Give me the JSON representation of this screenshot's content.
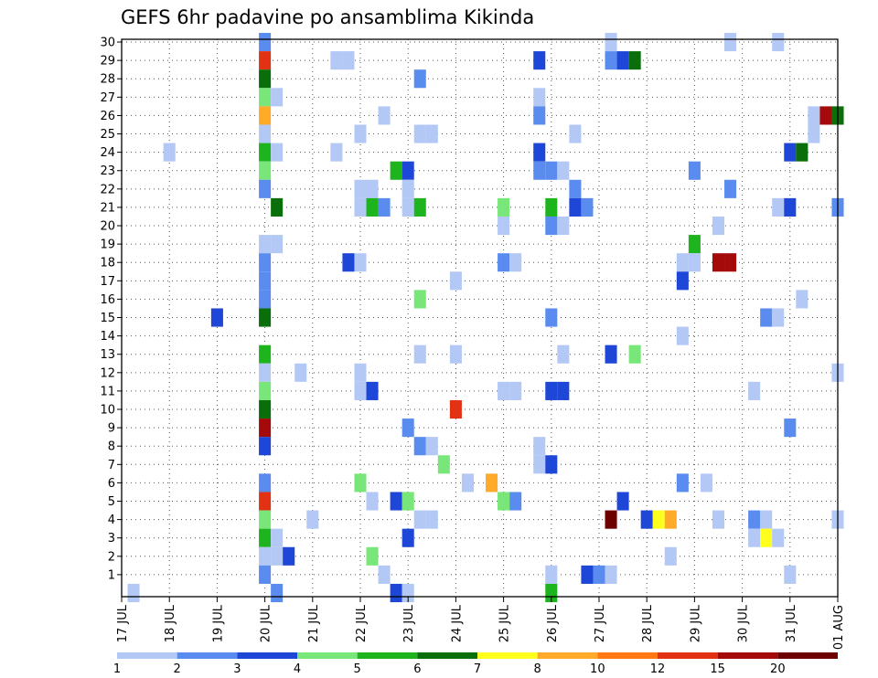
{
  "chart_data": {
    "type": "heatmap",
    "title": "GEFS 6hr padavine po ansamblima Kikinda",
    "grid": true,
    "y_members": {
      "min": 0,
      "max": 30,
      "labels": [
        "1",
        "2",
        "3",
        "4",
        "5",
        "6",
        "7",
        "8",
        "9",
        "10",
        "11",
        "12",
        "13",
        "14",
        "15",
        "16",
        "17",
        "18",
        "19",
        "20",
        "21",
        "22",
        "23",
        "24",
        "25",
        "26",
        "27",
        "28",
        "29",
        "30"
      ]
    },
    "x_time": {
      "labels": [
        "17 JUL",
        "18 JUL",
        "19 JUL",
        "20 JUL",
        "21 JUL",
        "22 JUL",
        "23 JUL",
        "24 JUL",
        "25 JUL",
        "26 JUL",
        "27 JUL",
        "28 JUL",
        "29 JUL",
        "30 JUL",
        "31 JUL",
        "01 AUG"
      ],
      "range_days": [
        0,
        15
      ]
    },
    "colorbar": {
      "labels": [
        "1",
        "2",
        "3",
        "4",
        "5",
        "6",
        "7",
        "8",
        "10",
        "12",
        "15",
        "20"
      ],
      "colors": [
        "#b4c8f5",
        "#5a8cf0",
        "#1e46d7",
        "#78e678",
        "#1eb41e",
        "#0a6e0a",
        "#ffff1e",
        "#ffaa28",
        "#ff7814",
        "#e13214",
        "#a50a0a",
        "#6e0000"
      ]
    },
    "cells": [
      {
        "day": 3.0,
        "member": 30,
        "c": 1
      },
      {
        "day": 3.0,
        "member": 29,
        "c": 9
      },
      {
        "day": 3.0,
        "member": 28,
        "c": 5
      },
      {
        "day": 3.0,
        "member": 27,
        "c": 3
      },
      {
        "day": 3.0,
        "member": 26,
        "c": 7
      },
      {
        "day": 3.0,
        "member": 25,
        "c": 0
      },
      {
        "day": 3.0,
        "member": 24,
        "c": 4
      },
      {
        "day": 3.0,
        "member": 23,
        "c": 3
      },
      {
        "day": 3.0,
        "member": 22,
        "c": 1
      },
      {
        "day": 3.0,
        "member": 19,
        "c": 0
      },
      {
        "day": 3.0,
        "member": 18,
        "c": 1
      },
      {
        "day": 3.0,
        "member": 17,
        "c": 1
      },
      {
        "day": 3.0,
        "member": 16,
        "c": 1
      },
      {
        "day": 3.0,
        "member": 15,
        "c": 5
      },
      {
        "day": 3.0,
        "member": 13,
        "c": 4
      },
      {
        "day": 3.0,
        "member": 12,
        "c": 0
      },
      {
        "day": 3.0,
        "member": 11,
        "c": 3
      },
      {
        "day": 3.0,
        "member": 10,
        "c": 5
      },
      {
        "day": 3.0,
        "member": 9,
        "c": 10
      },
      {
        "day": 3.0,
        "member": 8,
        "c": 2
      },
      {
        "day": 3.0,
        "member": 6,
        "c": 1
      },
      {
        "day": 3.0,
        "member": 5,
        "c": 9
      },
      {
        "day": 3.0,
        "member": 4,
        "c": 3
      },
      {
        "day": 3.0,
        "member": 3,
        "c": 4
      },
      {
        "day": 3.0,
        "member": 2,
        "c": 0
      },
      {
        "day": 3.0,
        "member": 1,
        "c": 1
      },
      {
        "day": 3.25,
        "member": 27,
        "c": 0
      },
      {
        "day": 3.25,
        "member": 24,
        "c": 0
      },
      {
        "day": 3.25,
        "member": 21,
        "c": 5
      },
      {
        "day": 3.25,
        "member": 19,
        "c": 0
      },
      {
        "day": 3.25,
        "member": 3,
        "c": 0
      },
      {
        "day": 3.25,
        "member": 2,
        "c": 0
      },
      {
        "day": 3.25,
        "member": 0,
        "c": 1
      },
      {
        "day": 0.25,
        "member": 0,
        "c": 0
      },
      {
        "day": 3.5,
        "member": 2,
        "c": 2
      },
      {
        "day": 1.0,
        "member": 24,
        "c": 0
      },
      {
        "day": 2.0,
        "member": 15,
        "c": 2
      },
      {
        "day": 3.75,
        "member": 12,
        "c": 0
      },
      {
        "day": 4.0,
        "member": 4,
        "c": 0
      },
      {
        "day": 4.5,
        "member": 29,
        "c": 0
      },
      {
        "day": 4.5,
        "member": 24,
        "c": 0
      },
      {
        "day": 4.75,
        "member": 29,
        "c": 0
      },
      {
        "day": 4.75,
        "member": 18,
        "c": 2
      },
      {
        "day": 5.0,
        "member": 25,
        "c": 0
      },
      {
        "day": 5.0,
        "member": 22,
        "c": 0
      },
      {
        "day": 5.0,
        "member": 21,
        "c": 0
      },
      {
        "day": 5.0,
        "member": 18,
        "c": 0
      },
      {
        "day": 5.0,
        "member": 12,
        "c": 0
      },
      {
        "day": 5.0,
        "member": 11,
        "c": 0
      },
      {
        "day": 5.0,
        "member": 6,
        "c": 3
      },
      {
        "day": 5.25,
        "member": 22,
        "c": 0
      },
      {
        "day": 5.25,
        "member": 21,
        "c": 4
      },
      {
        "day": 5.25,
        "member": 11,
        "c": 2
      },
      {
        "day": 5.25,
        "member": 5,
        "c": 0
      },
      {
        "day": 5.25,
        "member": 2,
        "c": 3
      },
      {
        "day": 5.5,
        "member": 21,
        "c": 1
      },
      {
        "day": 5.5,
        "member": 1,
        "c": 0
      },
      {
        "day": 5.5,
        "member": 26,
        "c": 0
      },
      {
        "day": 5.75,
        "member": 23,
        "c": 4
      },
      {
        "day": 5.75,
        "member": 5,
        "c": 2
      },
      {
        "day": 5.75,
        "member": 0,
        "c": 2
      },
      {
        "day": 6.0,
        "member": 23,
        "c": 2
      },
      {
        "day": 6.0,
        "member": 22,
        "c": 0
      },
      {
        "day": 6.0,
        "member": 21,
        "c": 0
      },
      {
        "day": 6.0,
        "member": 9,
        "c": 1
      },
      {
        "day": 6.0,
        "member": 5,
        "c": 3
      },
      {
        "day": 6.0,
        "member": 3,
        "c": 2
      },
      {
        "day": 6.0,
        "member": 0,
        "c": 0
      },
      {
        "day": 6.25,
        "member": 28,
        "c": 1
      },
      {
        "day": 6.25,
        "member": 25,
        "c": 0
      },
      {
        "day": 6.25,
        "member": 21,
        "c": 4
      },
      {
        "day": 6.25,
        "member": 16,
        "c": 3
      },
      {
        "day": 6.25,
        "member": 13,
        "c": 0
      },
      {
        "day": 6.25,
        "member": 8,
        "c": 1
      },
      {
        "day": 6.25,
        "member": 4,
        "c": 0
      },
      {
        "day": 6.5,
        "member": 25,
        "c": 0
      },
      {
        "day": 6.5,
        "member": 8,
        "c": 0
      },
      {
        "day": 6.5,
        "member": 4,
        "c": 0
      },
      {
        "day": 6.75,
        "member": 7,
        "c": 3
      },
      {
        "day": 7.0,
        "member": 17,
        "c": 0
      },
      {
        "day": 7.0,
        "member": 13,
        "c": 0
      },
      {
        "day": 7.0,
        "member": 10,
        "c": 9
      },
      {
        "day": 7.25,
        "member": 6,
        "c": 0
      },
      {
        "day": 7.75,
        "member": 6,
        "c": 7
      },
      {
        "day": 8.0,
        "member": 21,
        "c": 3
      },
      {
        "day": 8.0,
        "member": 20,
        "c": 0
      },
      {
        "day": 8.0,
        "member": 18,
        "c": 1
      },
      {
        "day": 8.0,
        "member": 11,
        "c": 0
      },
      {
        "day": 8.0,
        "member": 5,
        "c": 3
      },
      {
        "day": 8.25,
        "member": 18,
        "c": 0
      },
      {
        "day": 8.25,
        "member": 11,
        "c": 0
      },
      {
        "day": 8.25,
        "member": 5,
        "c": 1
      },
      {
        "day": 8.75,
        "member": 29,
        "c": 2
      },
      {
        "day": 8.75,
        "member": 27,
        "c": 0
      },
      {
        "day": 8.75,
        "member": 26,
        "c": 1
      },
      {
        "day": 8.75,
        "member": 24,
        "c": 2
      },
      {
        "day": 8.75,
        "member": 23,
        "c": 1
      },
      {
        "day": 8.75,
        "member": 8,
        "c": 0
      },
      {
        "day": 8.75,
        "member": 7,
        "c": 0
      },
      {
        "day": 9.0,
        "member": 23,
        "c": 1
      },
      {
        "day": 9.0,
        "member": 21,
        "c": 4
      },
      {
        "day": 9.0,
        "member": 20,
        "c": 1
      },
      {
        "day": 9.0,
        "member": 15,
        "c": 1
      },
      {
        "day": 9.0,
        "member": 11,
        "c": 2
      },
      {
        "day": 9.0,
        "member": 7,
        "c": 2
      },
      {
        "day": 9.0,
        "member": 1,
        "c": 0
      },
      {
        "day": 9.0,
        "member": 0,
        "c": 4
      },
      {
        "day": 9.25,
        "member": 23,
        "c": 0
      },
      {
        "day": 9.25,
        "member": 20,
        "c": 0
      },
      {
        "day": 9.25,
        "member": 13,
        "c": 0
      },
      {
        "day": 9.25,
        "member": 11,
        "c": 2
      },
      {
        "day": 9.5,
        "member": 25,
        "c": 0
      },
      {
        "day": 9.5,
        "member": 22,
        "c": 1
      },
      {
        "day": 9.5,
        "member": 21,
        "c": 2
      },
      {
        "day": 9.75,
        "member": 21,
        "c": 1
      },
      {
        "day": 9.75,
        "member": 1,
        "c": 2
      },
      {
        "day": 10.0,
        "member": 1,
        "c": 1
      },
      {
        "day": 10.25,
        "member": 30,
        "c": 0
      },
      {
        "day": 10.25,
        "member": 29,
        "c": 1
      },
      {
        "day": 10.25,
        "member": 13,
        "c": 2
      },
      {
        "day": 10.25,
        "member": 4,
        "c": 11
      },
      {
        "day": 10.25,
        "member": 1,
        "c": 0
      },
      {
        "day": 10.5,
        "member": 29,
        "c": 2
      },
      {
        "day": 10.5,
        "member": 5,
        "c": 2
      },
      {
        "day": 10.75,
        "member": 29,
        "c": 5
      },
      {
        "day": 10.75,
        "member": 13,
        "c": 3
      },
      {
        "day": 11.0,
        "member": 4,
        "c": 2
      },
      {
        "day": 11.25,
        "member": 4,
        "c": 6
      },
      {
        "day": 11.5,
        "member": 4,
        "c": 7
      },
      {
        "day": 11.5,
        "member": 2,
        "c": 0
      },
      {
        "day": 11.75,
        "member": 18,
        "c": 0
      },
      {
        "day": 11.75,
        "member": 17,
        "c": 2
      },
      {
        "day": 11.75,
        "member": 14,
        "c": 0
      },
      {
        "day": 11.75,
        "member": 6,
        "c": 1
      },
      {
        "day": 12.0,
        "member": 23,
        "c": 1
      },
      {
        "day": 12.0,
        "member": 19,
        "c": 4
      },
      {
        "day": 12.0,
        "member": 18,
        "c": 0
      },
      {
        "day": 12.25,
        "member": 6,
        "c": 0
      },
      {
        "day": 12.5,
        "member": 20,
        "c": 0
      },
      {
        "day": 12.5,
        "member": 18,
        "c": 10
      },
      {
        "day": 12.5,
        "member": 4,
        "c": 0
      },
      {
        "day": 12.75,
        "member": 18,
        "c": 10
      },
      {
        "day": 12.75,
        "member": 22,
        "c": 1
      },
      {
        "day": 12.75,
        "member": 30,
        "c": 0
      },
      {
        "day": 13.25,
        "member": 4,
        "c": 1
      },
      {
        "day": 13.25,
        "member": 3,
        "c": 0
      },
      {
        "day": 13.25,
        "member": 11,
        "c": 0
      },
      {
        "day": 13.5,
        "member": 15,
        "c": 1
      },
      {
        "day": 13.5,
        "member": 4,
        "c": 0
      },
      {
        "day": 13.5,
        "member": 3,
        "c": 6
      },
      {
        "day": 13.75,
        "member": 30,
        "c": 0
      },
      {
        "day": 13.75,
        "member": 21,
        "c": 0
      },
      {
        "day": 13.75,
        "member": 15,
        "c": 0
      },
      {
        "day": 13.75,
        "member": 3,
        "c": 0
      },
      {
        "day": 14.0,
        "member": 24,
        "c": 2
      },
      {
        "day": 14.0,
        "member": 21,
        "c": 2
      },
      {
        "day": 14.0,
        "member": 9,
        "c": 1
      },
      {
        "day": 14.0,
        "member": 1,
        "c": 0
      },
      {
        "day": 14.25,
        "member": 24,
        "c": 5
      },
      {
        "day": 14.25,
        "member": 16,
        "c": 0
      },
      {
        "day": 14.5,
        "member": 26,
        "c": 0
      },
      {
        "day": 14.5,
        "member": 25,
        "c": 0
      },
      {
        "day": 14.75,
        "member": 26,
        "c": 10
      },
      {
        "day": 15.0,
        "member": 26,
        "c": 5
      },
      {
        "day": 15.0,
        "member": 21,
        "c": 1
      },
      {
        "day": 15.0,
        "member": 12,
        "c": 0
      },
      {
        "day": 15.0,
        "member": 4,
        "c": 0
      }
    ]
  }
}
